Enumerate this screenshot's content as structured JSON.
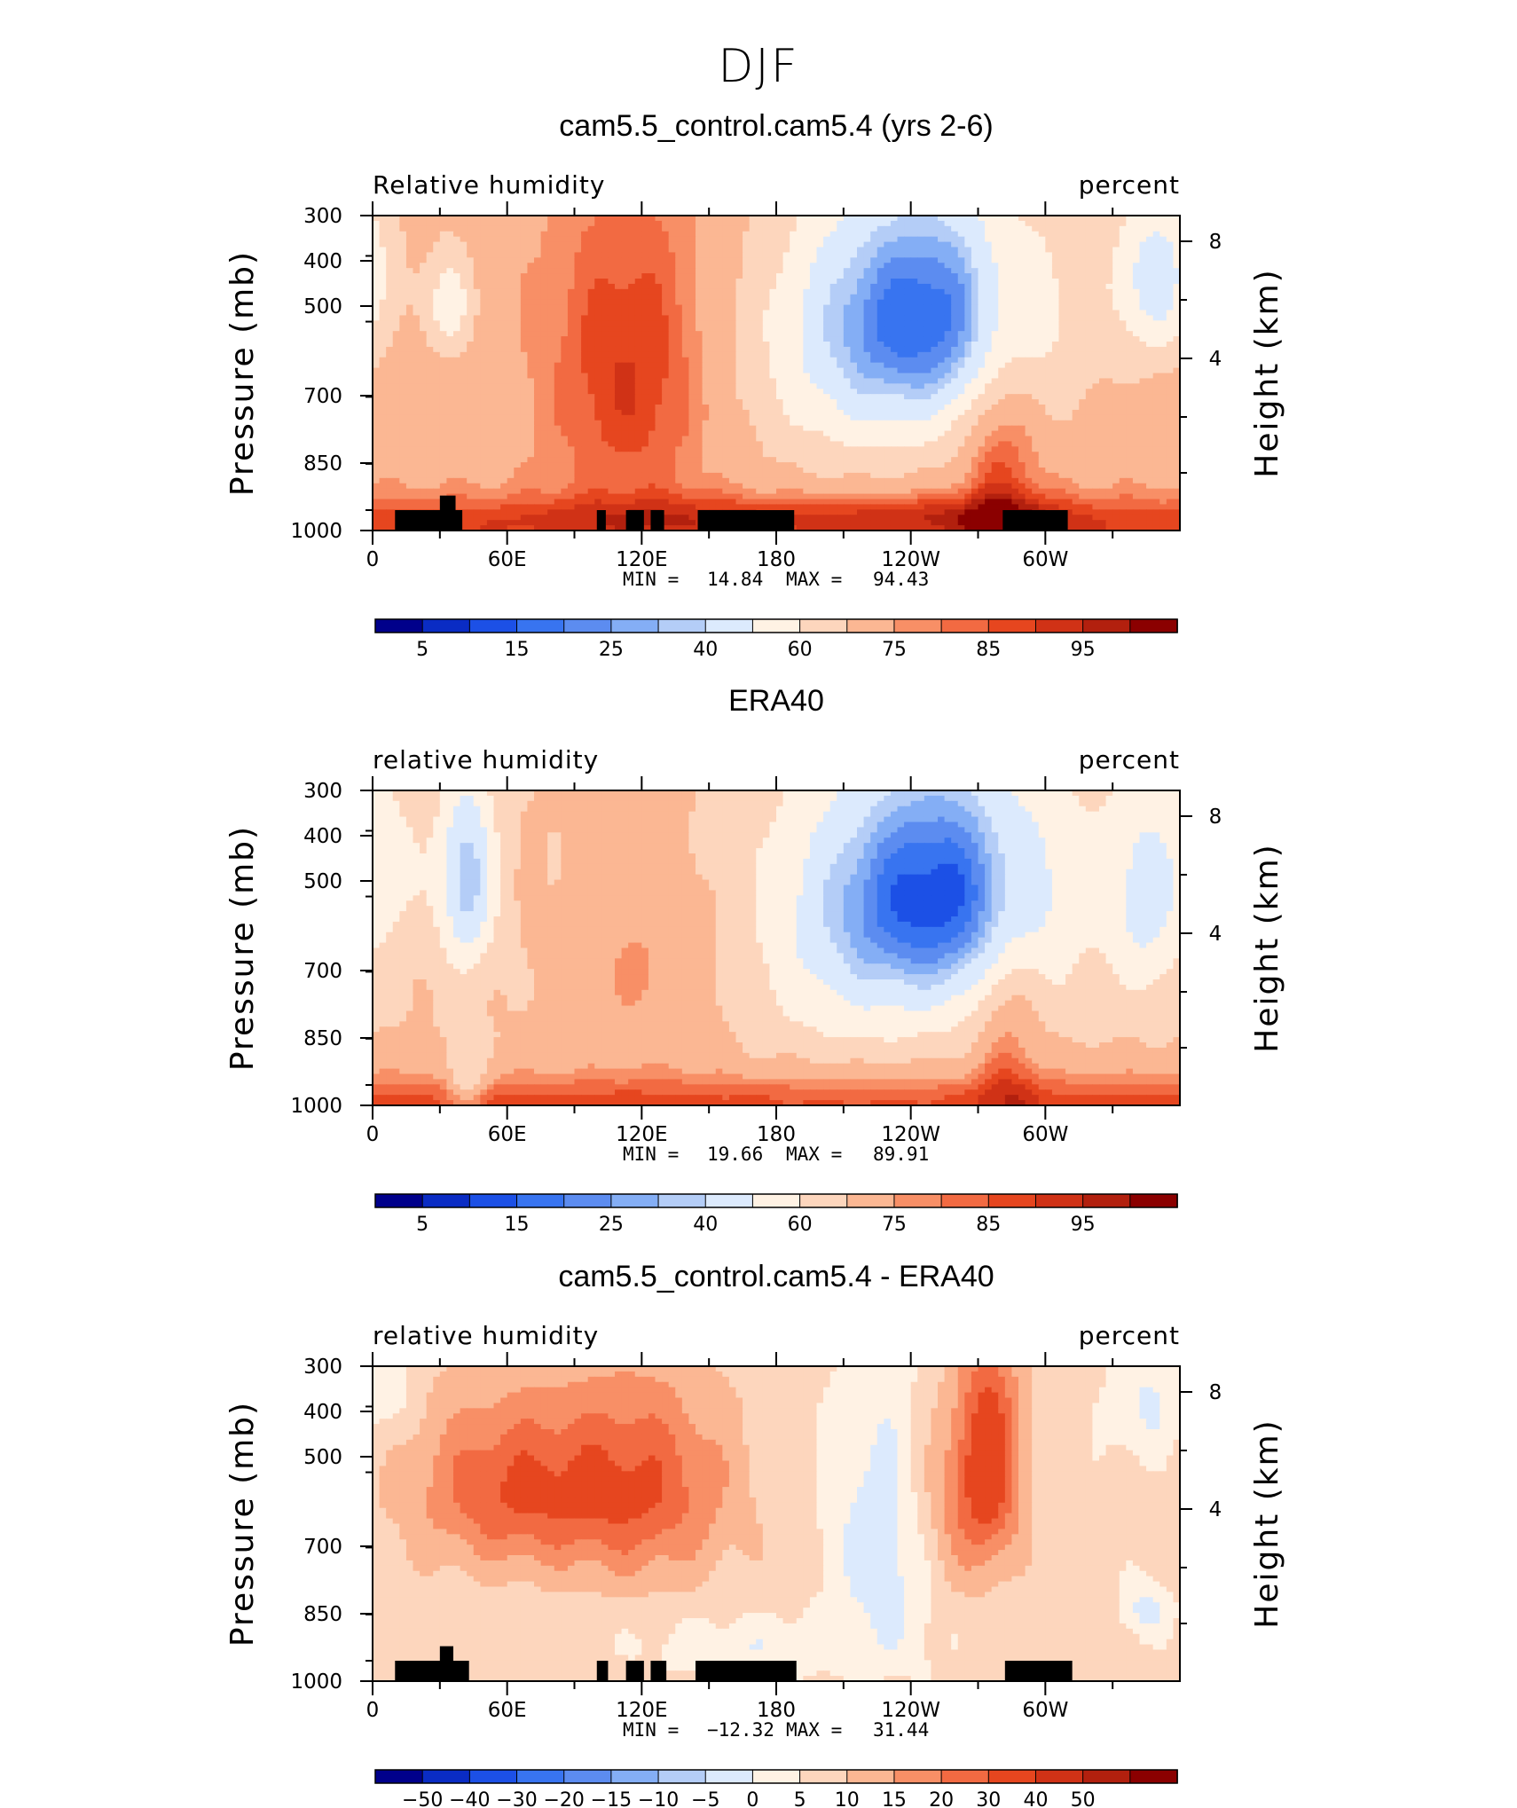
{
  "suptitle": "DJF",
  "palettes": {
    "abs": [
      "#00008b",
      "#0a2cc4",
      "#1c50e6",
      "#3874f0",
      "#5c8cf0",
      "#84aef5",
      "#b4cdf7",
      "#dceafd",
      "#fff2e4",
      "#fdd6bd",
      "#fbb793",
      "#f88f66",
      "#f26a42",
      "#e6461f",
      "#d03216",
      "#b2200e",
      "#8b0000"
    ],
    "diff": [
      "#00008b",
      "#0a2cc4",
      "#1c50e6",
      "#3874f0",
      "#5c8cf0",
      "#84aef5",
      "#b4cdf7",
      "#dceafd",
      "#fff2e4",
      "#fdd6bd",
      "#fbb793",
      "#f88f66",
      "#f26a42",
      "#e6461f",
      "#d03216",
      "#b2200e",
      "#8b0000"
    ]
  },
  "chart_data": [
    {
      "type": "heatmap",
      "title": "cam5.5_control.cam5.4 (yrs 2-6)",
      "left_label": "Relative humidity",
      "right_label": "percent",
      "ylabel": "Pressure (mb)",
      "ylabel2": "Height (km)",
      "xlim": [
        0,
        360
      ],
      "x_ticks": [
        "0",
        "60E",
        "120E",
        "180",
        "120W",
        "60W"
      ],
      "y_ticks": [
        "300",
        "400",
        "500",
        "700",
        "850",
        "1000"
      ],
      "y2_ticks": [
        "8",
        "4"
      ],
      "stats": {
        "min_label": "MIN =",
        "min": "14.84",
        "max_label": "MAX =",
        "max": "94.43"
      },
      "colorbar_levels": [
        0,
        5,
        10,
        15,
        20,
        25,
        30,
        40,
        50,
        60,
        70,
        75,
        80,
        85,
        90,
        95,
        100
      ],
      "colorbar_labels": [
        "5",
        "15",
        "25",
        "40",
        "60",
        "75",
        "85",
        "95"
      ],
      "field": {
        "base": 66,
        "surface_boost": 16,
        "blobs": [
          {
            "lon": 35,
            "p": 420,
            "amp": -25,
            "slon": 7,
            "sp": 60
          },
          {
            "lon": 115,
            "p": 550,
            "amp": 20,
            "slon": 26,
            "sp": 230
          },
          {
            "lon": 250,
            "p": 430,
            "amp": -46,
            "slon": 40,
            "sp": 150
          },
          {
            "lon": 215,
            "p": 560,
            "amp": -16,
            "slon": 40,
            "sp": 200
          },
          {
            "lon": 280,
            "p": 720,
            "amp": 18,
            "slon": 12,
            "sp": 300
          },
          {
            "lon": 350,
            "p": 380,
            "amp": -30,
            "slon": 14,
            "sp": 90
          },
          {
            "lon": 150,
            "p": 940,
            "amp": 8,
            "slon": 80,
            "sp": 50
          },
          {
            "lon": 270,
            "p": 940,
            "amp": 10,
            "slon": 40,
            "sp": 50
          }
        ]
      },
      "topography": [
        [
          10,
          40,
          925
        ],
        [
          30,
          37,
          875
        ],
        [
          100,
          104,
          925
        ],
        [
          113,
          121,
          925
        ],
        [
          124,
          130,
          925
        ],
        [
          145,
          188,
          925
        ],
        [
          281,
          310,
          925
        ]
      ]
    },
    {
      "type": "heatmap",
      "title": "ERA40",
      "left_label": "relative humidity",
      "right_label": "percent",
      "ylabel": "Pressure (mb)",
      "ylabel2": "Height (km)",
      "xlim": [
        0,
        360
      ],
      "x_ticks": [
        "0",
        "60E",
        "120E",
        "180",
        "120W",
        "60W"
      ],
      "y_ticks": [
        "300",
        "400",
        "500",
        "700",
        "850",
        "1000"
      ],
      "y2_ticks": [
        "8",
        "4"
      ],
      "stats": {
        "min_label": "MIN =",
        "min": "19.66",
        "max_label": "MAX =",
        "max": "89.91"
      },
      "colorbar_levels": [
        0,
        5,
        10,
        15,
        20,
        25,
        30,
        40,
        50,
        60,
        70,
        75,
        80,
        85,
        90,
        95,
        100
      ],
      "colorbar_labels": [
        "5",
        "15",
        "25",
        "40",
        "60",
        "75",
        "85",
        "95"
      ],
      "field": {
        "base": 60,
        "surface_boost": 22,
        "blobs": [
          {
            "lon": 42,
            "p": 420,
            "amp": -35,
            "slon": 9,
            "sp": 110
          },
          {
            "lon": 42,
            "p": 900,
            "amp": -20,
            "slon": 6,
            "sp": 80
          },
          {
            "lon": 125,
            "p": 600,
            "amp": 12,
            "slon": 25,
            "sp": 160
          },
          {
            "lon": 255,
            "p": 440,
            "amp": -45,
            "slon": 38,
            "sp": 150
          },
          {
            "lon": 215,
            "p": 560,
            "amp": -15,
            "slon": 40,
            "sp": 200
          },
          {
            "lon": 283,
            "p": 750,
            "amp": 15,
            "slon": 10,
            "sp": 250
          },
          {
            "lon": 345,
            "p": 450,
            "amp": -22,
            "slon": 12,
            "sp": 140
          },
          {
            "lon": 10,
            "p": 400,
            "amp": -12,
            "slon": 10,
            "sp": 100
          }
        ]
      },
      "topography": []
    },
    {
      "type": "heatmap",
      "title": "cam5.5_control.cam5.4 - ERA40",
      "left_label": "relative humidity",
      "right_label": "percent",
      "ylabel": "Pressure (mb)",
      "ylabel2": "Height (km)",
      "xlim": [
        0,
        360
      ],
      "x_ticks": [
        "0",
        "60E",
        "120E",
        "180",
        "120W",
        "60W"
      ],
      "y_ticks": [
        "300",
        "400",
        "500",
        "700",
        "850",
        "1000"
      ],
      "y2_ticks": [
        "8",
        "4"
      ],
      "stats": {
        "min_label": "MIN =",
        "min": "−12.32",
        "max_label": "MAX =",
        "max": "31.44"
      },
      "colorbar_levels": [
        -60,
        -50,
        -40,
        -30,
        -20,
        -15,
        -10,
        -5,
        0,
        5,
        10,
        15,
        20,
        30,
        40,
        50,
        60
      ],
      "colorbar_labels": [
        "−50",
        "−40",
        "−30",
        "−20",
        "−15",
        "−10",
        "−5",
        "0",
        "5",
        "10",
        "15",
        "20",
        "30",
        "40",
        "50"
      ],
      "field": {
        "base": 2,
        "surface_boost": 0,
        "blobs": [
          {
            "lon": 60,
            "p": 480,
            "amp": 17,
            "slon": 30,
            "sp": 110
          },
          {
            "lon": 120,
            "p": 480,
            "amp": 17,
            "slon": 28,
            "sp": 130
          },
          {
            "lon": 230,
            "p": 580,
            "amp": -12,
            "slon": 18,
            "sp": 220
          },
          {
            "lon": 275,
            "p": 430,
            "amp": 22,
            "slon": 10,
            "sp": 130
          },
          {
            "lon": 255,
            "p": 520,
            "amp": 10,
            "slon": 15,
            "sp": 150
          },
          {
            "lon": 170,
            "p": 880,
            "amp": -6,
            "slon": 35,
            "sp": 70
          },
          {
            "lon": 345,
            "p": 760,
            "amp": -9,
            "slon": 8,
            "sp": 60
          },
          {
            "lon": 345,
            "p": 350,
            "amp": -8,
            "slon": 12,
            "sp": 60
          },
          {
            "lon": 10,
            "p": 320,
            "amp": -6,
            "slon": 6,
            "sp": 50
          }
        ]
      },
      "topography": [
        [
          10,
          43,
          925
        ],
        [
          30,
          36,
          875
        ],
        [
          100,
          105,
          925
        ],
        [
          113,
          121,
          925
        ],
        [
          124,
          131,
          925
        ],
        [
          144,
          189,
          925
        ],
        [
          282,
          312,
          925
        ]
      ]
    }
  ]
}
